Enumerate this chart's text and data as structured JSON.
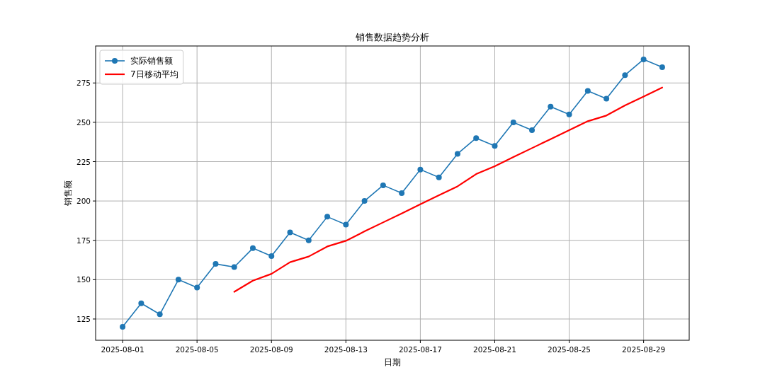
{
  "chart_data": {
    "type": "line",
    "title": "销售数据趋势分析",
    "xlabel": "日期",
    "ylabel": "销售额",
    "x": [
      "2025-08-01",
      "2025-08-02",
      "2025-08-03",
      "2025-08-04",
      "2025-08-05",
      "2025-08-06",
      "2025-08-07",
      "2025-08-08",
      "2025-08-09",
      "2025-08-10",
      "2025-08-11",
      "2025-08-12",
      "2025-08-13",
      "2025-08-14",
      "2025-08-15",
      "2025-08-16",
      "2025-08-17",
      "2025-08-18",
      "2025-08-19",
      "2025-08-20",
      "2025-08-21",
      "2025-08-22",
      "2025-08-23",
      "2025-08-24",
      "2025-08-25",
      "2025-08-26",
      "2025-08-27",
      "2025-08-28",
      "2025-08-29",
      "2025-08-30"
    ],
    "series": [
      {
        "name": "实际销售额",
        "color": "#1f77b4",
        "marker": "circle",
        "values": [
          120,
          135,
          128,
          150,
          145,
          160,
          158,
          170,
          165,
          180,
          175,
          190,
          185,
          200,
          210,
          205,
          220,
          215,
          230,
          240,
          235,
          250,
          245,
          260,
          255,
          270,
          265,
          280,
          290,
          285
        ]
      },
      {
        "name": "7日移动平均",
        "color": "#ff0000",
        "marker": "none",
        "x": [
          "2025-08-07",
          "2025-08-08",
          "2025-08-09",
          "2025-08-10",
          "2025-08-11",
          "2025-08-12",
          "2025-08-13",
          "2025-08-14",
          "2025-08-15",
          "2025-08-16",
          "2025-08-17",
          "2025-08-18",
          "2025-08-19",
          "2025-08-20",
          "2025-08-21",
          "2025-08-22",
          "2025-08-23",
          "2025-08-24",
          "2025-08-25",
          "2025-08-26",
          "2025-08-27",
          "2025-08-28",
          "2025-08-29",
          "2025-08-30"
        ],
        "values": [
          142.3,
          149.4,
          153.7,
          161.1,
          164.7,
          171.1,
          174.7,
          180.7,
          186.4,
          192.1,
          197.9,
          203.6,
          209.3,
          217.1,
          222.1,
          227.9,
          233.6,
          239.3,
          245.0,
          250.7,
          254.3,
          260.7,
          266.4,
          272.1
        ]
      }
    ],
    "xlim": [
      "2025-07-30T13:12",
      "2025-08-31T10:48"
    ],
    "ylim": [
      111.5,
      298.5
    ],
    "xticks": [
      "2025-08-01",
      "2025-08-05",
      "2025-08-09",
      "2025-08-13",
      "2025-08-17",
      "2025-08-21",
      "2025-08-25",
      "2025-08-29"
    ],
    "yticks": [
      125,
      150,
      175,
      200,
      225,
      250,
      275
    ],
    "grid": true,
    "legend": "top left",
    "line_style": "solid"
  }
}
